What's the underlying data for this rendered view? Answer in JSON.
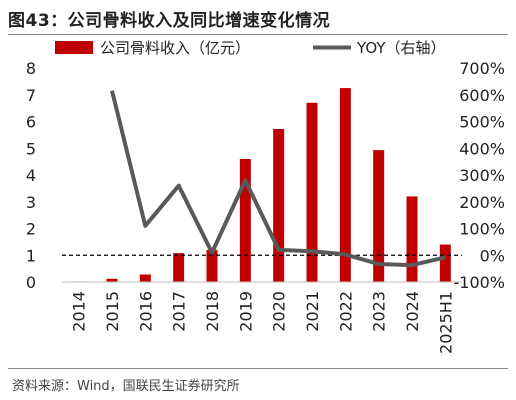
{
  "header": {
    "title": "图43：公司骨料收入及同比增速变化情况"
  },
  "footer": {
    "source": "资料来源：Wind，国联民生证券研究所"
  },
  "colors": {
    "bar": "#c00000",
    "line": "#595959",
    "reference": "#000000",
    "axis": "#bfbfbf"
  },
  "chart_data": {
    "type": "bar",
    "categories": [
      "2014",
      "2015",
      "2016",
      "2017",
      "2018",
      "2019",
      "2020",
      "2021",
      "2022",
      "2023",
      "2024",
      "2025H1"
    ],
    "series": [
      {
        "name": "公司骨料收入（亿元）",
        "type": "bar",
        "axis": "left",
        "values": [
          0.02,
          0.12,
          0.28,
          1.08,
          1.2,
          4.6,
          5.72,
          6.7,
          7.25,
          4.93,
          3.2,
          1.4
        ]
      },
      {
        "name": "YOY（右轴）",
        "type": "line",
        "axis": "right",
        "values": [
          null,
          6.15,
          1.1,
          2.6,
          0.1,
          2.8,
          0.2,
          0.15,
          0.03,
          -0.33,
          -0.37,
          -0.08
        ]
      }
    ],
    "y_left": {
      "ylim": [
        0,
        8
      ],
      "ticks": [
        "0",
        "1",
        "2",
        "3",
        "4",
        "5",
        "6",
        "7",
        "8"
      ]
    },
    "y_right": {
      "ylim": [
        -1,
        7
      ],
      "ticks": [
        "-100%",
        "0%",
        "100%",
        "200%",
        "300%",
        "400%",
        "500%",
        "600%",
        "700%"
      ]
    },
    "reference_line": {
      "axis": "right",
      "value": 0
    },
    "legend": "top",
    "grid": false
  }
}
